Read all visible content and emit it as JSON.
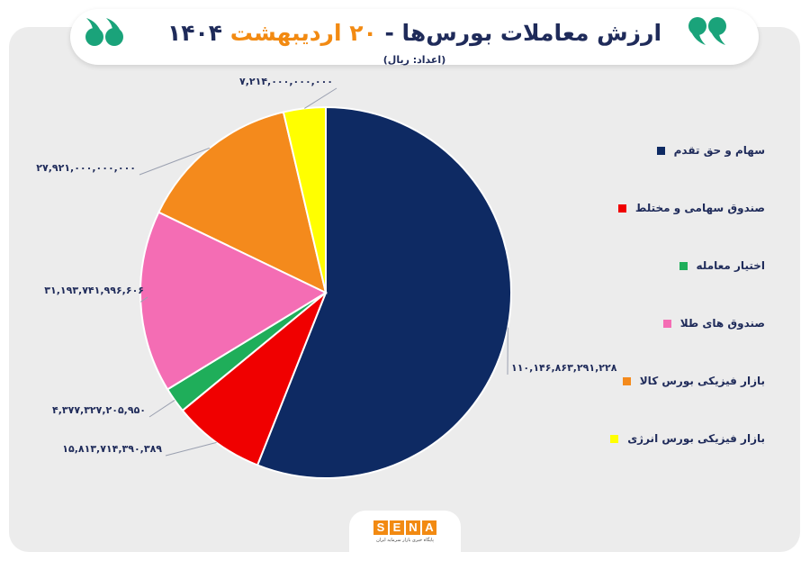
{
  "header": {
    "title_main": "ارزش معاملات بورس‌ها -",
    "title_date": "۲۰ اردیبهشت",
    "title_year": "۱۴۰۴",
    "subtitle": "(اعداد: ریال)"
  },
  "colors": {
    "navy": "#0e2a63",
    "red": "#f00000",
    "green": "#1fae5a",
    "pink": "#f46db4",
    "orange": "#f48a1c",
    "yellow": "#ffff00",
    "accent": "#f28a12",
    "quote_green": "#1aa37a"
  },
  "logo": {
    "letters": [
      "S",
      "E",
      "N",
      "A"
    ],
    "tagline": "پایگاه خبری بازار سرمایه ایران"
  },
  "chart_data": {
    "type": "pie",
    "title": "ارزش معاملات بورس‌ها - ۲۰ اردیبهشت ۱۴۰۴",
    "unit": "(اعداد: ریال)",
    "legend_position": "right",
    "start_angle": "12 o'clock, clockwise",
    "slices": [
      {
        "name": "سهام و حق تقدم",
        "value": 110146863291228,
        "label": "۱۱۰,۱۴۶,۸۶۳,۲۹۱,۲۲۸",
        "color": "#0e2a63"
      },
      {
        "name": "صندوق سهامی و مختلط",
        "value": 15813714390389,
        "label": "۱۵,۸۱۳,۷۱۴,۳۹۰,۳۸۹",
        "color": "#f00000"
      },
      {
        "name": "اختیار معامله",
        "value": 4377327205950,
        "label": "۴,۳۷۷,۳۲۷,۲۰۵,۹۵۰",
        "color": "#1fae5a"
      },
      {
        "name": "صندوق های طلا",
        "value": 31193741996606,
        "label": "۳۱,۱۹۳,۷۴۱,۹۹۶,۶۰۶",
        "color": "#f46db4"
      },
      {
        "name": "بازار فیزیکی بورس کالا",
        "value": 27921000000000,
        "label": "۲۷,۹۲۱,۰۰۰,۰۰۰,۰۰۰",
        "color": "#f48a1c"
      },
      {
        "name": "بازار فیزیکی بورس انرژی",
        "value": 7214000000000,
        "label": "۷,۲۱۴,۰۰۰,۰۰۰,۰۰۰",
        "color": "#ffff00"
      }
    ]
  }
}
